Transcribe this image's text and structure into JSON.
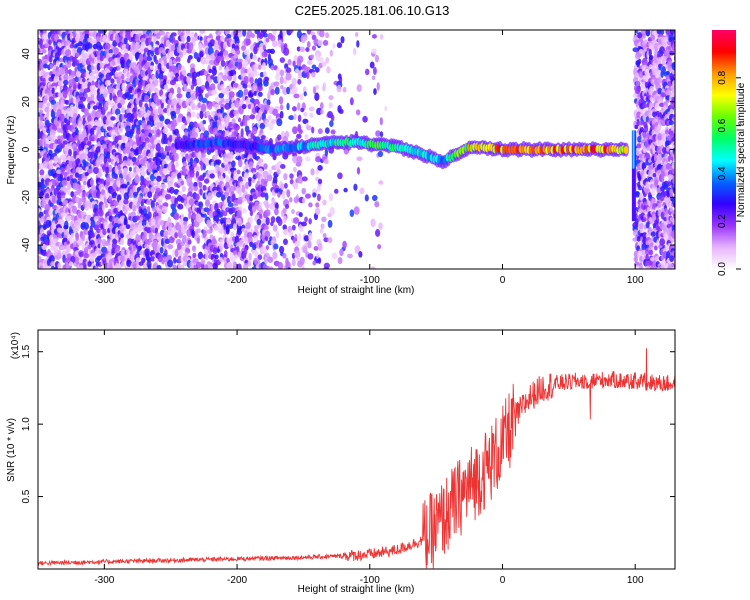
{
  "title": "C2E5.2025.181.06.10.G13",
  "chart_data": [
    {
      "type": "heatmap",
      "xlabel": "Height of straight line (km)",
      "ylabel": "Frequency (Hz)",
      "xlim": [
        -350,
        130
      ],
      "ylim": [
        -50,
        50
      ],
      "xticks": [
        -300,
        -200,
        -100,
        0,
        100
      ],
      "yticks": [
        -40,
        -20,
        0,
        20,
        40
      ],
      "xtick_labels": [
        "-300",
        "-200",
        "-100",
        "0",
        "100"
      ],
      "ytick_labels": [
        "-40",
        "-20",
        "0",
        "20",
        "40"
      ],
      "colorbar": {
        "label": "Normalized spectral amplitude",
        "range": [
          0.0,
          1.0
        ],
        "ticks": [
          0.0,
          0.2,
          0.4,
          0.6,
          0.8
        ],
        "tick_labels": [
          "0.0",
          "0.2",
          "0.4",
          "0.6",
          "0.8"
        ],
        "colors": [
          "#ffffff",
          "#e6b3ff",
          "#9933ff",
          "#3300ff",
          "#0066ff",
          "#00ffff",
          "#00ff66",
          "#66ff00",
          "#ffff00",
          "#ff9900",
          "#ff0000",
          "#ff0066"
        ]
      },
      "signal_track": {
        "x": [
          -245,
          -230,
          -215,
          -200,
          -185,
          -170,
          -155,
          -140,
          -125,
          -110,
          -95,
          -80,
          -65,
          -55,
          -45,
          -35,
          -25,
          -15,
          0,
          20,
          40,
          60,
          80,
          95
        ],
        "frequency": [
          2,
          2,
          3,
          2,
          1,
          0,
          1,
          2,
          3,
          3,
          2,
          1,
          -1,
          -3,
          -5,
          -2,
          1,
          1,
          0,
          0,
          0,
          0,
          0,
          0
        ],
        "amplitude": [
          0.3,
          0.35,
          0.4,
          0.3,
          0.35,
          0.4,
          0.45,
          0.5,
          0.55,
          0.55,
          0.6,
          0.6,
          0.55,
          0.5,
          0.45,
          0.6,
          0.8,
          0.9,
          0.92,
          0.92,
          0.92,
          0.92,
          0.9,
          0.8
        ]
      },
      "noise_region_right_x": [
        98,
        130
      ]
    },
    {
      "type": "line",
      "xlabel": "Height of straight line (km)",
      "ylabel": "SNR (10 * v/v)",
      "y_multiplier": "(x10⁴)",
      "xlim": [
        -350,
        130
      ],
      "ylim": [
        0,
        1.65
      ],
      "xticks": [
        -300,
        -200,
        -100,
        0,
        100
      ],
      "yticks": [
        0.5,
        1.0,
        1.5
      ],
      "xtick_labels": [
        "-300",
        "-200",
        "-100",
        "0",
        "100"
      ],
      "ytick_labels": [
        "0.5",
        "1.0",
        "1.5"
      ],
      "series": [
        {
          "color": "#ee3333",
          "x": [
            -350,
            -300,
            -250,
            -200,
            -150,
            -120,
            -100,
            -80,
            -60,
            -50,
            -40,
            -30,
            -20,
            -10,
            0,
            10,
            20,
            30,
            40,
            50,
            60,
            70,
            80,
            90,
            100,
            110,
            120,
            130
          ],
          "values": [
            0.04,
            0.05,
            0.06,
            0.07,
            0.08,
            0.09,
            0.1,
            0.13,
            0.2,
            0.28,
            0.4,
            0.52,
            0.62,
            0.72,
            0.85,
            1.05,
            1.18,
            1.25,
            1.28,
            1.29,
            1.3,
            1.3,
            1.31,
            1.3,
            1.3,
            1.29,
            1.28,
            1.28
          ]
        }
      ]
    }
  ]
}
